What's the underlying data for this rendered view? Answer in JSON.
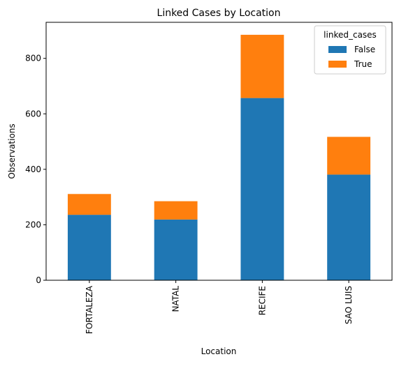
{
  "chart_data": {
    "type": "bar",
    "stacked": true,
    "title": "Linked Cases by Location",
    "xlabel": "Location",
    "ylabel": "Observations",
    "categories": [
      "FORTALEZA",
      "NATAL",
      "RECIFE",
      "SAO LUIS"
    ],
    "series": [
      {
        "name": "False",
        "color": "#1f77b4",
        "values": [
          236,
          219,
          657,
          381
        ]
      },
      {
        "name": "True",
        "color": "#ff7f0e",
        "values": [
          75,
          66,
          228,
          136
        ]
      }
    ],
    "ylim": [
      0,
      930
    ],
    "yticks": [
      0,
      200,
      400,
      600,
      800
    ],
    "legend": {
      "title": "linked_cases",
      "placement": "top-right"
    },
    "grid": false
  }
}
